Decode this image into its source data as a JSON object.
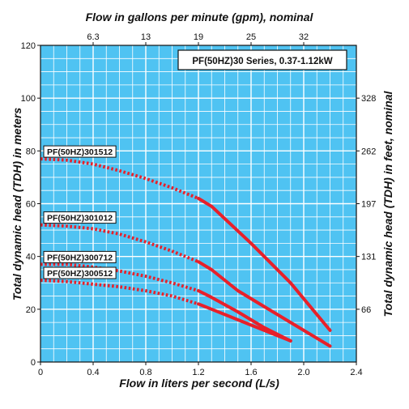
{
  "chart_data": {
    "type": "line",
    "title": "PF(50HZ)30 Series, 0.37-1.12kW",
    "xlabel": "Flow in liters per second (L/s)",
    "ylabel": "Total dynamic head (TDH) in meters",
    "top_xlabel": "Flow in gallons per minute (gpm), nominal",
    "right_ylabel": "Total dynamic head (TDH) in feet, nominal",
    "xlim": [
      0,
      2.4
    ],
    "ylim": [
      0,
      120
    ],
    "x_ticks": [
      "0",
      "0.4",
      "0.8",
      "1.2",
      "1.6",
      "2.0",
      "2.4"
    ],
    "y_ticks": [
      "0",
      "20",
      "40",
      "60",
      "80",
      "100",
      "120"
    ],
    "top_ticks": [
      {
        "label": "6.3",
        "x": 0.4
      },
      {
        "label": "13",
        "x": 0.8
      },
      {
        "label": "19",
        "x": 1.2
      },
      {
        "label": "25",
        "x": 1.6
      },
      {
        "label": "32",
        "x": 2.0
      }
    ],
    "right_ticks": [
      {
        "label": "66",
        "y": 20
      },
      {
        "label": "131",
        "y": 40
      },
      {
        "label": "197",
        "y": 60
      },
      {
        "label": "262",
        "y": 80
      },
      {
        "label": "328",
        "y": 100
      }
    ],
    "grid": true,
    "background": "#4fc3f2",
    "line_color": "#e8202a",
    "series": [
      {
        "name": "PF(50HZ)301512",
        "dotted": [
          [
            0,
            77
          ],
          [
            0.2,
            76.5
          ],
          [
            0.4,
            75
          ],
          [
            0.6,
            72.5
          ],
          [
            0.8,
            69.5
          ],
          [
            1.0,
            66
          ],
          [
            1.2,
            62
          ]
        ],
        "solid": [
          [
            1.2,
            62
          ],
          [
            1.3,
            59
          ],
          [
            1.6,
            45
          ],
          [
            1.9,
            30
          ],
          [
            2.2,
            12
          ]
        ]
      },
      {
        "name": "PF(50HZ)301012",
        "dotted": [
          [
            0,
            52
          ],
          [
            0.2,
            51.5
          ],
          [
            0.4,
            50.5
          ],
          [
            0.6,
            48.5
          ],
          [
            0.8,
            45.5
          ],
          [
            1.0,
            42
          ],
          [
            1.2,
            38
          ]
        ],
        "solid": [
          [
            1.2,
            38
          ],
          [
            1.3,
            35
          ],
          [
            1.5,
            27
          ],
          [
            1.7,
            21
          ],
          [
            1.9,
            15
          ],
          [
            2.2,
            6
          ]
        ]
      },
      {
        "name": "PF(50HZ)300712",
        "dotted": [
          [
            0,
            37
          ],
          [
            0.2,
            37
          ],
          [
            0.4,
            36
          ],
          [
            0.6,
            34.5
          ],
          [
            0.8,
            32.5
          ],
          [
            1.0,
            30
          ],
          [
            1.2,
            27
          ]
        ],
        "solid": [
          [
            1.2,
            27
          ],
          [
            1.3,
            24.5
          ],
          [
            1.5,
            19
          ],
          [
            1.7,
            13
          ],
          [
            1.9,
            8
          ]
        ]
      },
      {
        "name": "PF(50HZ)300512",
        "dotted": [
          [
            0,
            31
          ],
          [
            0.2,
            30.5
          ],
          [
            0.4,
            29.5
          ],
          [
            0.6,
            28.5
          ],
          [
            0.8,
            27
          ],
          [
            1.0,
            25
          ],
          [
            1.2,
            22
          ]
        ],
        "solid": [
          [
            1.2,
            22
          ],
          [
            1.3,
            20
          ],
          [
            1.5,
            16
          ],
          [
            1.7,
            12
          ],
          [
            1.9,
            8
          ]
        ]
      }
    ]
  }
}
